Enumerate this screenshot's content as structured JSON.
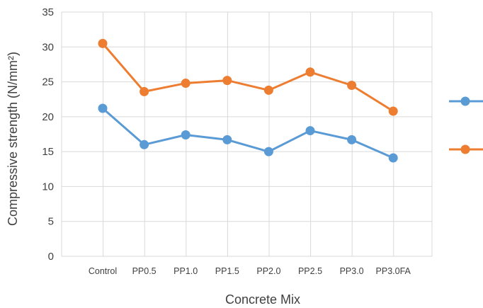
{
  "chart_data": {
    "type": "line",
    "title": "",
    "xlabel": "Concrete Mix",
    "ylabel": "Compressive strength (N/mm²)",
    "categories": [
      "Control",
      "PP0.5",
      "PP1.0",
      "PP1.5",
      "PP2.0",
      "PP2.5",
      "PP3.0",
      "PP3.0FA"
    ],
    "ylim": [
      0,
      35
    ],
    "yticks": [
      "0",
      "5",
      "10",
      "15",
      "20",
      "25",
      "30",
      "35"
    ],
    "grid": true,
    "legend_position": "right",
    "series": [
      {
        "color": "#5B9BD5",
        "values": [
          21.2,
          16.0,
          17.4,
          16.7,
          15.0,
          18.0,
          16.7,
          14.1
        ]
      },
      {
        "color": "#ED7D31",
        "values": [
          30.5,
          23.6,
          24.8,
          25.2,
          23.8,
          26.4,
          24.5,
          20.8
        ]
      }
    ]
  }
}
